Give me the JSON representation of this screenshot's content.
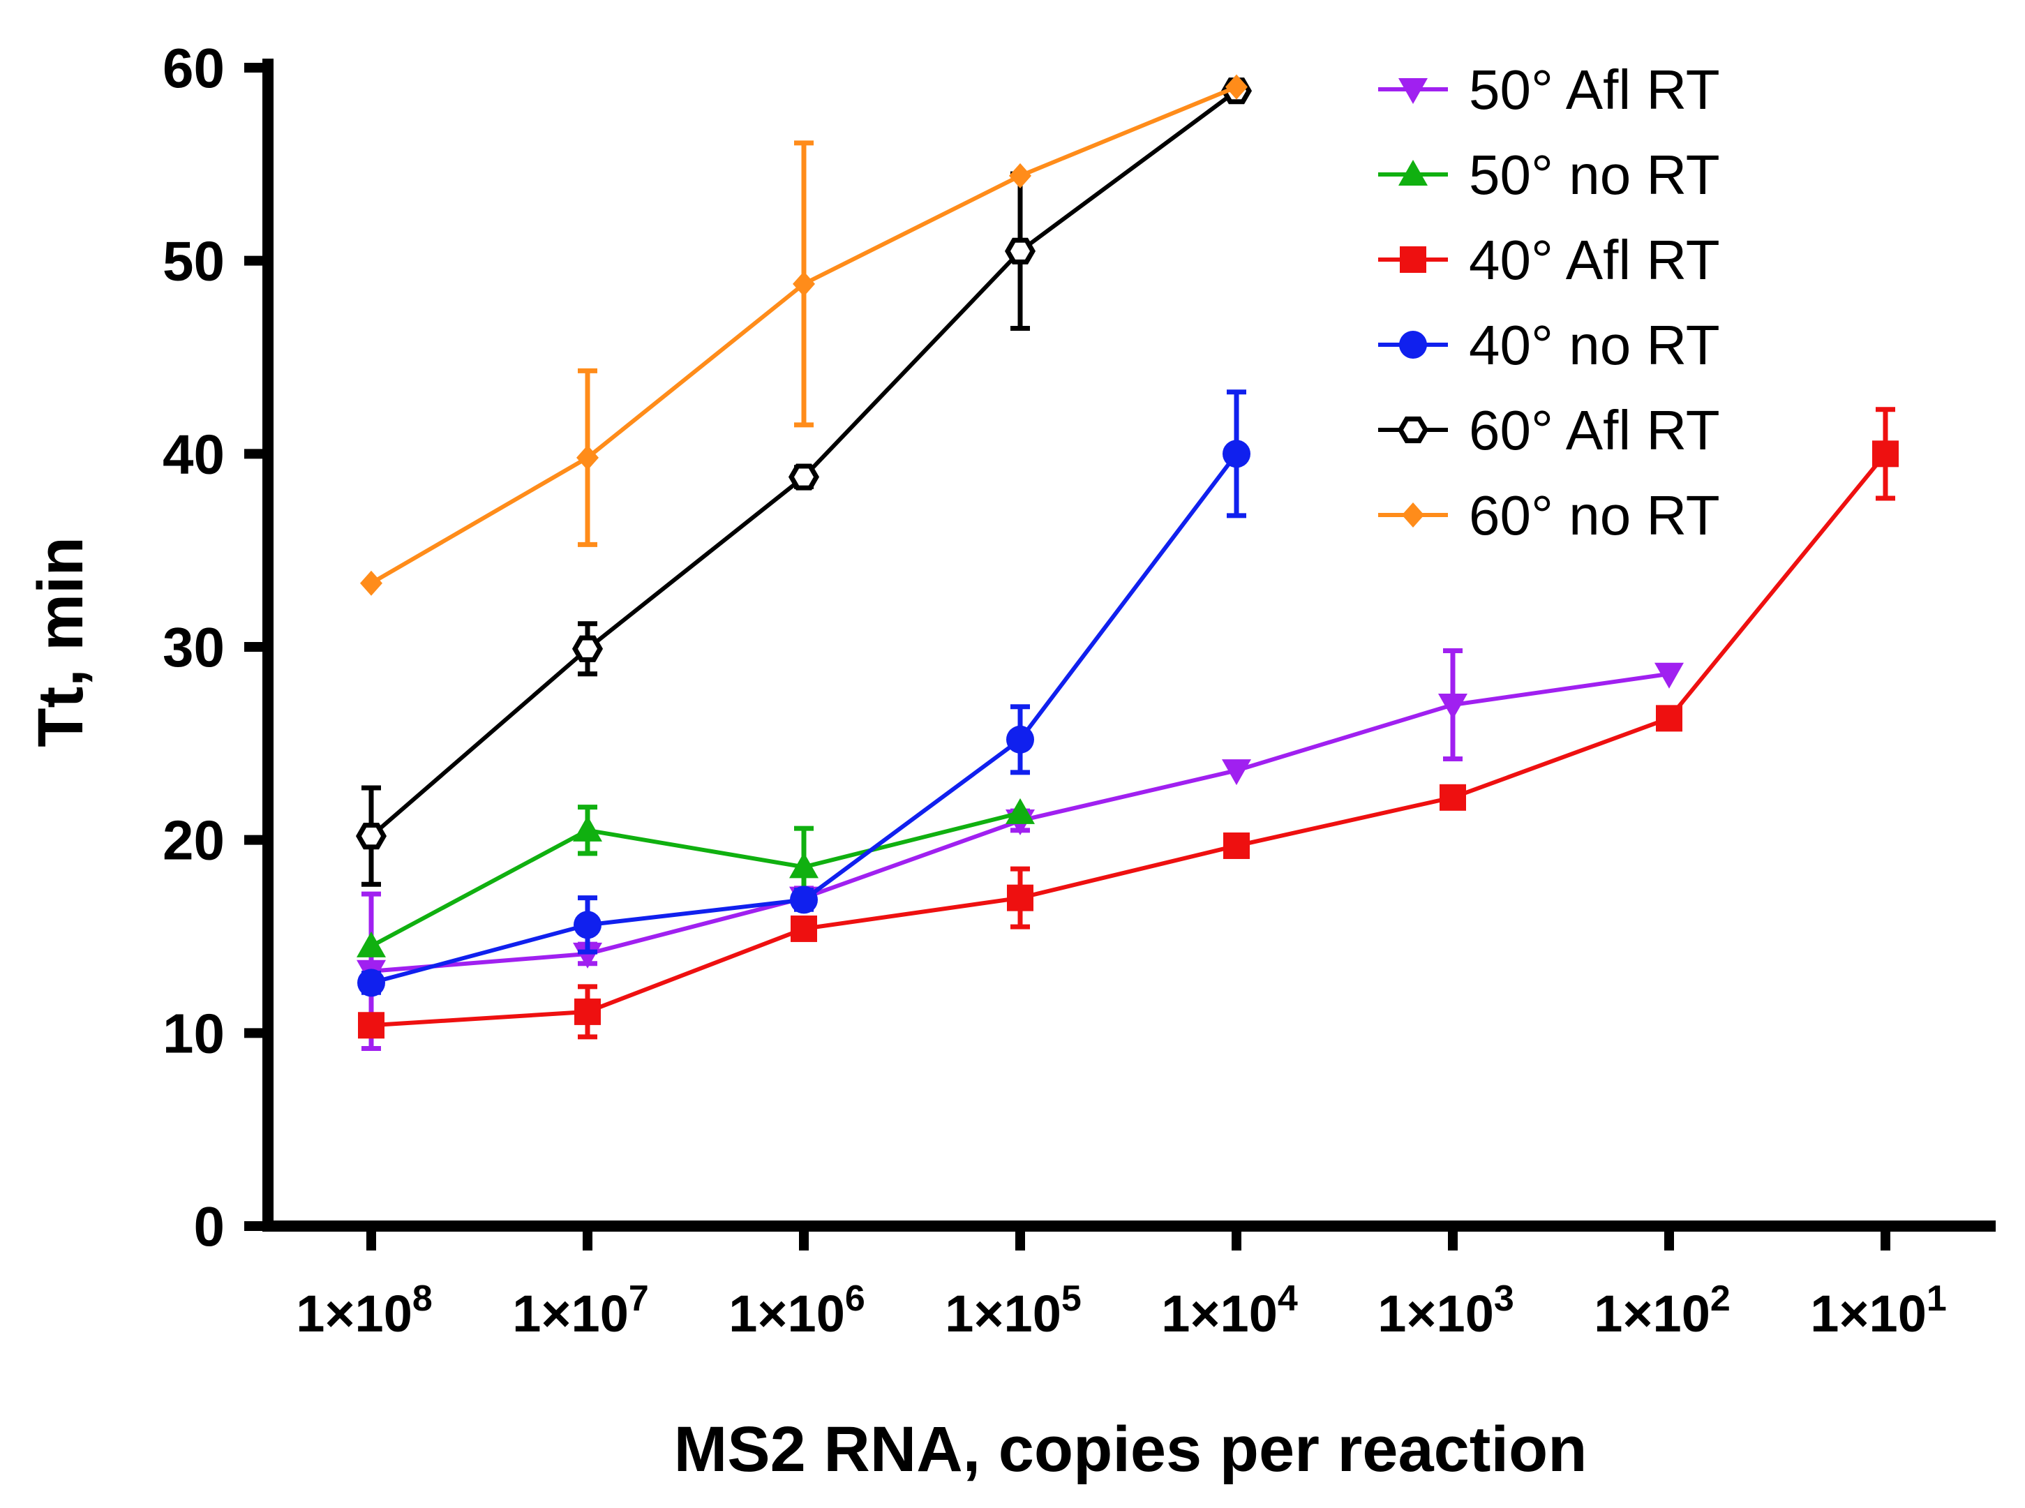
{
  "chart_data": {
    "type": "line",
    "title": "",
    "xlabel": "MS2 RNA, copies per reaction",
    "ylabel": "Tt, min",
    "ylim": [
      0,
      60
    ],
    "yticks": [
      0,
      10,
      20,
      30,
      40,
      50,
      60
    ],
    "ytick_labels": [
      "0",
      "10",
      "20",
      "30",
      "40",
      "50",
      "60"
    ],
    "categories": [
      {
        "base": "1×10",
        "exp": "8"
      },
      {
        "base": "1×10",
        "exp": "7"
      },
      {
        "base": "1×10",
        "exp": "6"
      },
      {
        "base": "1×10",
        "exp": "5"
      },
      {
        "base": "1×10",
        "exp": "4"
      },
      {
        "base": "1×10",
        "exp": "3"
      },
      {
        "base": "1×10",
        "exp": "2"
      },
      {
        "base": "1×10",
        "exp": "1"
      }
    ],
    "legend_position": "top-right",
    "series": [
      {
        "name": "50° Afl RT",
        "color": "#a020f0",
        "marker": "triangle-down",
        "values": [
          13.2,
          14.1,
          17.0,
          21.0,
          23.6,
          27.0,
          28.6,
          null
        ],
        "err": [
          4.0,
          0.5,
          0.5,
          0.5,
          0,
          2.8,
          0,
          null
        ]
      },
      {
        "name": "50° no RT",
        "color": "#10b010",
        "marker": "triangle-up",
        "values": [
          14.5,
          20.5,
          18.6,
          21.4,
          null,
          null,
          null,
          null
        ],
        "err": [
          0,
          1.2,
          2.0,
          0,
          null,
          null,
          null,
          null
        ]
      },
      {
        "name": "40° Afl RT",
        "color": "#ee1010",
        "marker": "square",
        "values": [
          10.4,
          11.1,
          15.4,
          17.0,
          19.7,
          22.2,
          26.3,
          40.0
        ],
        "err": [
          0.5,
          1.3,
          0.5,
          1.5,
          0.5,
          0.5,
          0.5,
          2.3
        ]
      },
      {
        "name": "40° no RT",
        "color": "#1020ee",
        "marker": "circle",
        "values": [
          12.6,
          15.6,
          16.9,
          25.2,
          40.0,
          null,
          null,
          null
        ],
        "err": [
          0.5,
          1.4,
          0.5,
          1.7,
          3.2,
          null,
          null,
          null
        ]
      },
      {
        "name": "60° Afl RT",
        "color": "#000000",
        "marker": "hexagon-open",
        "values": [
          20.2,
          29.9,
          38.8,
          50.5,
          58.8,
          null,
          null,
          null
        ],
        "err": [
          2.5,
          1.3,
          0.5,
          4.0,
          0,
          null,
          null,
          null
        ]
      },
      {
        "name": "60° no RT",
        "color": "#ff8c1a",
        "marker": "diamond",
        "values": [
          33.3,
          39.8,
          48.8,
          54.4,
          59.0,
          null,
          null,
          null
        ],
        "err": [
          0,
          4.5,
          7.3,
          0,
          0,
          null,
          null,
          null
        ]
      }
    ]
  }
}
